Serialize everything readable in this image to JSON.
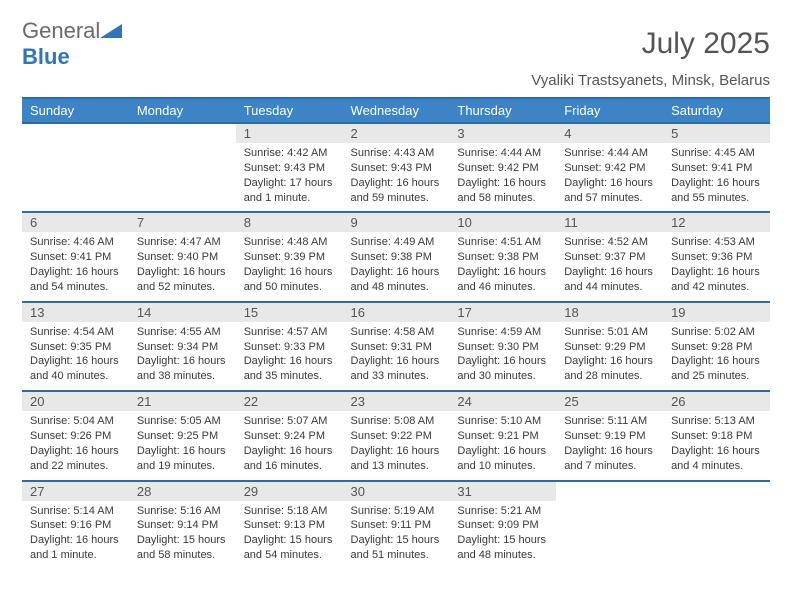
{
  "brand": {
    "name1": "General",
    "name2": "Blue"
  },
  "title": "July 2025",
  "location": "Vyaliki Trastsyanets, Minsk, Belarus",
  "colors": {
    "header_bg": "#3c84c6",
    "header_rule": "#2f6aa0",
    "daynum_bg": "#e8e8e8",
    "text": "#333333",
    "logo_gray": "#6a6a6a",
    "logo_blue": "#2f76b8"
  },
  "dayNames": [
    "Sunday",
    "Monday",
    "Tuesday",
    "Wednesday",
    "Thursday",
    "Friday",
    "Saturday"
  ],
  "firstDayIndex": 2,
  "daysInMonth": 31,
  "days": {
    "1": {
      "sunrise": "4:42 AM",
      "sunset": "9:43 PM",
      "daylight": "17 hours and 1 minute."
    },
    "2": {
      "sunrise": "4:43 AM",
      "sunset": "9:43 PM",
      "daylight": "16 hours and 59 minutes."
    },
    "3": {
      "sunrise": "4:44 AM",
      "sunset": "9:42 PM",
      "daylight": "16 hours and 58 minutes."
    },
    "4": {
      "sunrise": "4:44 AM",
      "sunset": "9:42 PM",
      "daylight": "16 hours and 57 minutes."
    },
    "5": {
      "sunrise": "4:45 AM",
      "sunset": "9:41 PM",
      "daylight": "16 hours and 55 minutes."
    },
    "6": {
      "sunrise": "4:46 AM",
      "sunset": "9:41 PM",
      "daylight": "16 hours and 54 minutes."
    },
    "7": {
      "sunrise": "4:47 AM",
      "sunset": "9:40 PM",
      "daylight": "16 hours and 52 minutes."
    },
    "8": {
      "sunrise": "4:48 AM",
      "sunset": "9:39 PM",
      "daylight": "16 hours and 50 minutes."
    },
    "9": {
      "sunrise": "4:49 AM",
      "sunset": "9:38 PM",
      "daylight": "16 hours and 48 minutes."
    },
    "10": {
      "sunrise": "4:51 AM",
      "sunset": "9:38 PM",
      "daylight": "16 hours and 46 minutes."
    },
    "11": {
      "sunrise": "4:52 AM",
      "sunset": "9:37 PM",
      "daylight": "16 hours and 44 minutes."
    },
    "12": {
      "sunrise": "4:53 AM",
      "sunset": "9:36 PM",
      "daylight": "16 hours and 42 minutes."
    },
    "13": {
      "sunrise": "4:54 AM",
      "sunset": "9:35 PM",
      "daylight": "16 hours and 40 minutes."
    },
    "14": {
      "sunrise": "4:55 AM",
      "sunset": "9:34 PM",
      "daylight": "16 hours and 38 minutes."
    },
    "15": {
      "sunrise": "4:57 AM",
      "sunset": "9:33 PM",
      "daylight": "16 hours and 35 minutes."
    },
    "16": {
      "sunrise": "4:58 AM",
      "sunset": "9:31 PM",
      "daylight": "16 hours and 33 minutes."
    },
    "17": {
      "sunrise": "4:59 AM",
      "sunset": "9:30 PM",
      "daylight": "16 hours and 30 minutes."
    },
    "18": {
      "sunrise": "5:01 AM",
      "sunset": "9:29 PM",
      "daylight": "16 hours and 28 minutes."
    },
    "19": {
      "sunrise": "5:02 AM",
      "sunset": "9:28 PM",
      "daylight": "16 hours and 25 minutes."
    },
    "20": {
      "sunrise": "5:04 AM",
      "sunset": "9:26 PM",
      "daylight": "16 hours and 22 minutes."
    },
    "21": {
      "sunrise": "5:05 AM",
      "sunset": "9:25 PM",
      "daylight": "16 hours and 19 minutes."
    },
    "22": {
      "sunrise": "5:07 AM",
      "sunset": "9:24 PM",
      "daylight": "16 hours and 16 minutes."
    },
    "23": {
      "sunrise": "5:08 AM",
      "sunset": "9:22 PM",
      "daylight": "16 hours and 13 minutes."
    },
    "24": {
      "sunrise": "5:10 AM",
      "sunset": "9:21 PM",
      "daylight": "16 hours and 10 minutes."
    },
    "25": {
      "sunrise": "5:11 AM",
      "sunset": "9:19 PM",
      "daylight": "16 hours and 7 minutes."
    },
    "26": {
      "sunrise": "5:13 AM",
      "sunset": "9:18 PM",
      "daylight": "16 hours and 4 minutes."
    },
    "27": {
      "sunrise": "5:14 AM",
      "sunset": "9:16 PM",
      "daylight": "16 hours and 1 minute."
    },
    "28": {
      "sunrise": "5:16 AM",
      "sunset": "9:14 PM",
      "daylight": "15 hours and 58 minutes."
    },
    "29": {
      "sunrise": "5:18 AM",
      "sunset": "9:13 PM",
      "daylight": "15 hours and 54 minutes."
    },
    "30": {
      "sunrise": "5:19 AM",
      "sunset": "9:11 PM",
      "daylight": "15 hours and 51 minutes."
    },
    "31": {
      "sunrise": "5:21 AM",
      "sunset": "9:09 PM",
      "daylight": "15 hours and 48 minutes."
    }
  },
  "labels": {
    "sunrise": "Sunrise:",
    "sunset": "Sunset:",
    "daylight": "Daylight:"
  }
}
